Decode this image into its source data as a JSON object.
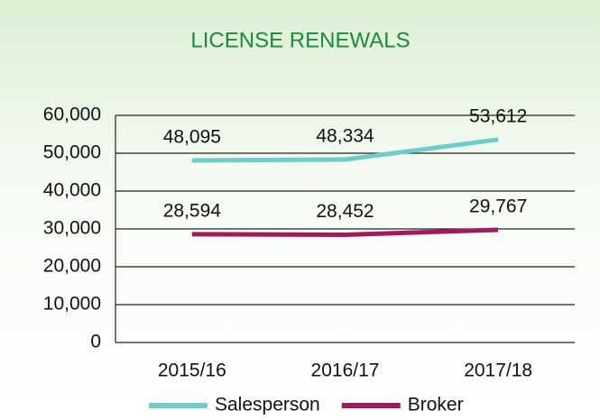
{
  "chart_data": {
    "type": "line",
    "title": "LICENSE RENEWALS",
    "categories": [
      "2015/16",
      "2016/17",
      "2017/18"
    ],
    "series": [
      {
        "name": "Salesperson",
        "color": "#6ecdc9",
        "values": [
          48095,
          48334,
          53612
        ],
        "value_labels": [
          "48,095",
          "48,334",
          "53,612"
        ]
      },
      {
        "name": "Broker",
        "color": "#a31a5c",
        "values": [
          28594,
          28452,
          29767
        ],
        "value_labels": [
          "28,594",
          "28,452",
          "29,767"
        ]
      }
    ],
    "ylim": [
      0,
      60000
    ],
    "yticks": [
      0,
      {
        "value": 10000,
        "label": "10,000"
      },
      {
        "value": 20000,
        "label": "20,000"
      },
      {
        "value": 30000,
        "label": "30,000"
      },
      {
        "value": 40000,
        "label": "40,000"
      },
      {
        "value": 50000,
        "label": "50,000"
      },
      {
        "value": 60000,
        "label": "60,000"
      }
    ],
    "grid": true,
    "legend": "bottom"
  }
}
